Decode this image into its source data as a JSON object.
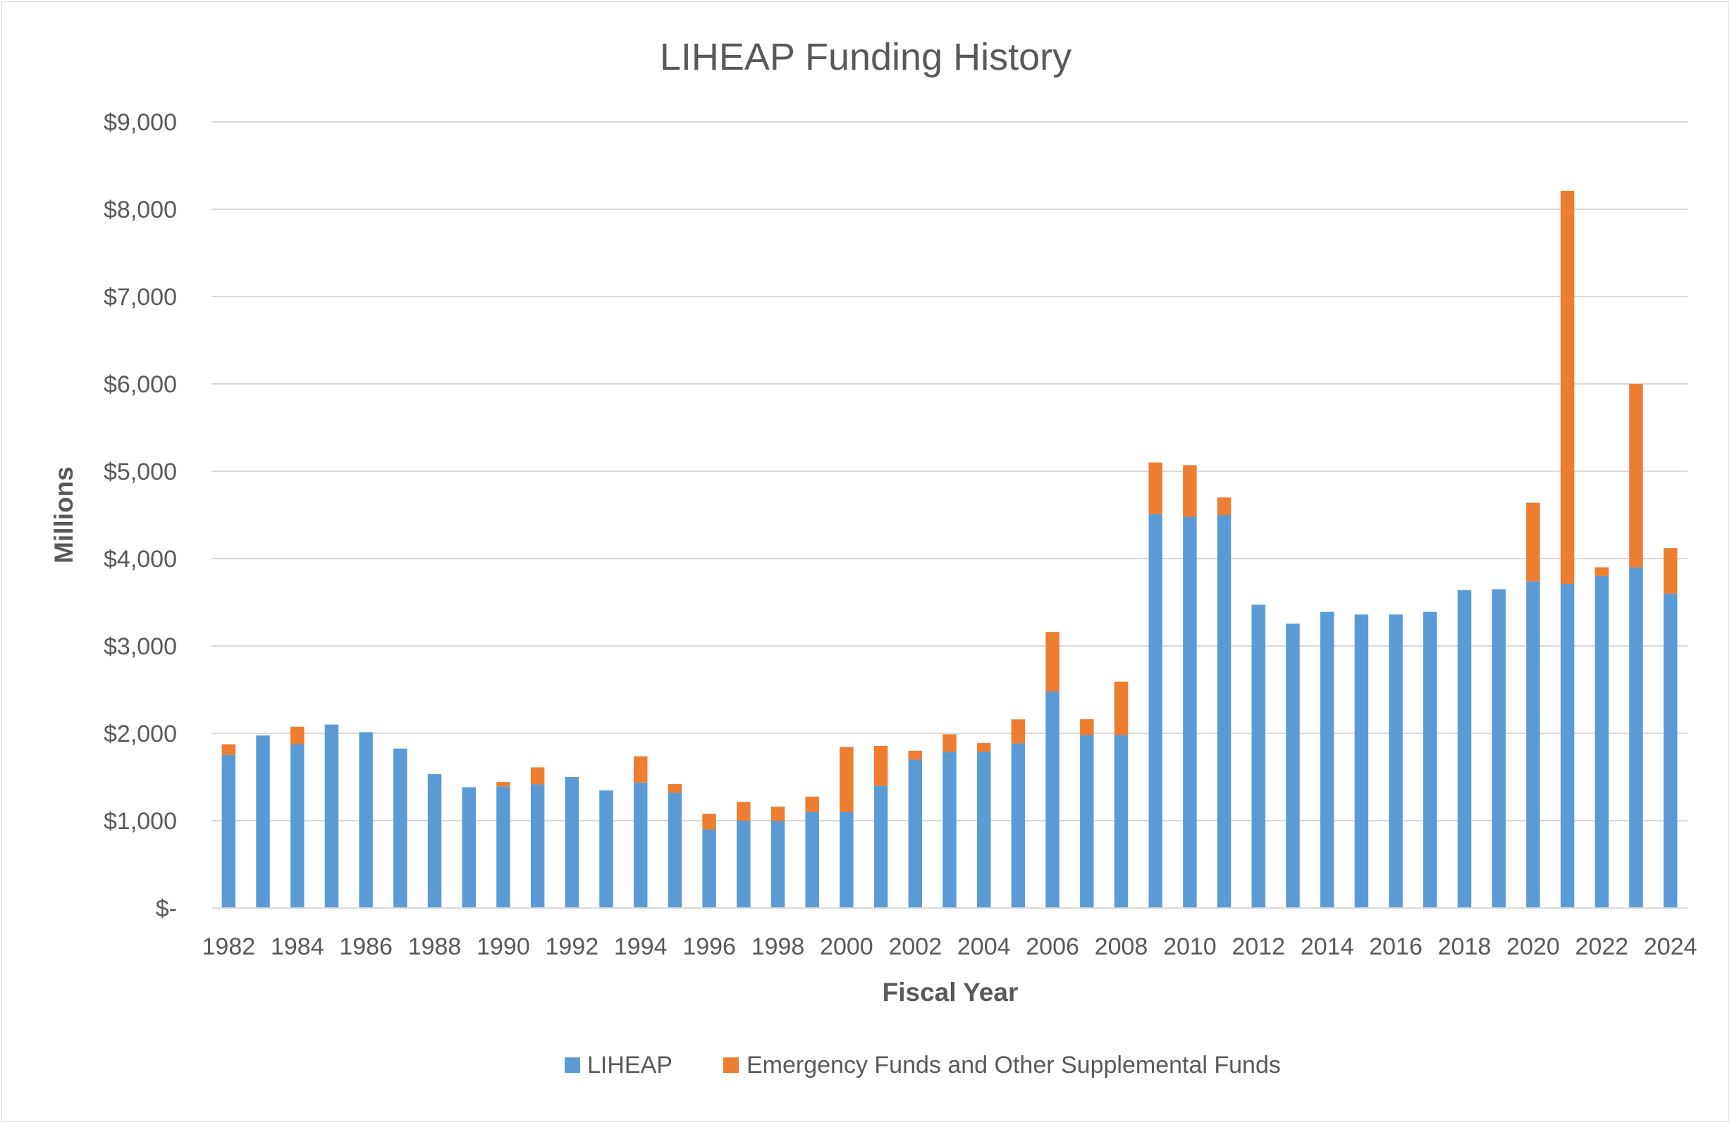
{
  "chart_data": {
    "type": "bar",
    "stacked": true,
    "title": "LIHEAP Funding History",
    "xlabel": "Fiscal Year",
    "ylabel": "Millions",
    "ylim": [
      0,
      9000
    ],
    "y_ticks": [
      0,
      1000,
      2000,
      3000,
      4000,
      5000,
      6000,
      7000,
      8000,
      9000
    ],
    "y_tick_labels": [
      "$-",
      "$1,000",
      "$2,000",
      "$3,000",
      "$4,000",
      "$5,000",
      "$6,000",
      "$7,000",
      "$8,000",
      "$9,000"
    ],
    "grid": true,
    "legend_position": "bottom",
    "categories": [
      1982,
      1983,
      1984,
      1985,
      1986,
      1987,
      1988,
      1989,
      1990,
      1991,
      1992,
      1993,
      1994,
      1995,
      1996,
      1997,
      1998,
      1999,
      2000,
      2001,
      2002,
      2003,
      2004,
      2005,
      2006,
      2007,
      2008,
      2009,
      2010,
      2011,
      2012,
      2013,
      2014,
      2015,
      2016,
      2017,
      2018,
      2019,
      2020,
      2021,
      2022,
      2023,
      2024
    ],
    "x_tick_labels": [
      "1982",
      "1984",
      "1986",
      "1988",
      "1990",
      "1992",
      "1994",
      "1996",
      "1998",
      "2000",
      "2002",
      "2004",
      "2006",
      "2008",
      "2010",
      "2012",
      "2014",
      "2016",
      "2018",
      "2020",
      "2022",
      "2024"
    ],
    "series": [
      {
        "name": "LIHEAP",
        "color": "#5b9bd5",
        "values": [
          1753,
          1975,
          1875,
          2100,
          2013,
          1825,
          1532,
          1383,
          1393,
          1415,
          1500,
          1346,
          1437,
          1319,
          900,
          1000,
          1000,
          1100,
          1100,
          1400,
          1700,
          1789,
          1789,
          1884,
          2480,
          1980,
          1980,
          4510,
          4480,
          4500,
          3472,
          3255,
          3390,
          3360,
          3360,
          3390,
          3640,
          3650,
          3740,
          3710,
          3800,
          3900,
          3600
        ]
      },
      {
        "name": "Emergency Funds and Other Supplemental Funds",
        "color": "#ed7d31",
        "values": [
          122,
          0,
          200,
          0,
          0,
          0,
          0,
          0,
          50,
          195,
          0,
          0,
          300,
          100,
          180,
          215,
          160,
          175,
          744,
          455,
          100,
          200,
          100,
          276,
          680,
          181,
          611,
          590,
          590,
          200,
          0,
          0,
          0,
          0,
          0,
          0,
          0,
          0,
          900,
          4500,
          100,
          2100,
          520
        ]
      }
    ]
  }
}
